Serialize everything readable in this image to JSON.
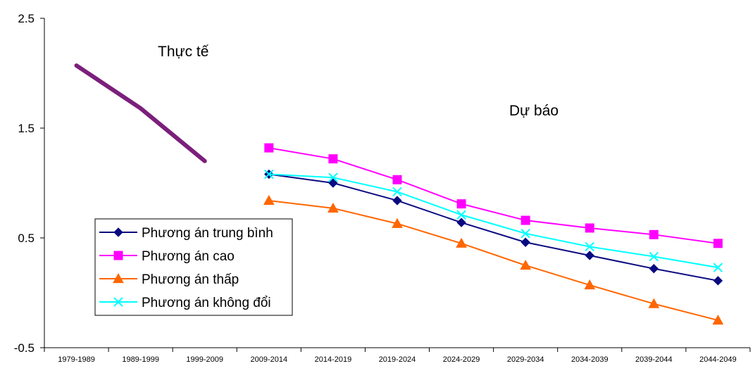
{
  "chart_data": {
    "type": "line",
    "categories": [
      "1979-1989",
      "1989-1999",
      "1999-2009",
      "2009-2014",
      "2014-2019",
      "2019-2024",
      "2024-2029",
      "2029-2034",
      "2034-2039",
      "2039-2044",
      "2044-2049"
    ],
    "ylim": [
      -0.5,
      2.5
    ],
    "yticks": [
      "2.5",
      "1.5",
      "0.5",
      "-0.5"
    ],
    "ytick_values": [
      2.5,
      1.5,
      0.5,
      -0.5
    ],
    "grid": false,
    "legend_position": "bottom-left",
    "annotations": [
      {
        "text": "Thực tế"
      },
      {
        "text": "Dự báo"
      }
    ],
    "series": [
      {
        "name": "",
        "key": "actual",
        "color": "#7b1f7b",
        "marker": "none",
        "values": [
          2.07,
          1.68,
          1.2,
          null,
          null,
          null,
          null,
          null,
          null,
          null,
          null
        ]
      },
      {
        "name": "Phương án trung bình",
        "key": "medium",
        "color": "#0a0a80",
        "marker": "diamond",
        "values": [
          null,
          null,
          null,
          1.08,
          1.0,
          0.84,
          0.64,
          0.46,
          0.34,
          0.22,
          0.11
        ]
      },
      {
        "name": "Phương án cao",
        "key": "high",
        "color": "#ff00ff",
        "marker": "square",
        "values": [
          null,
          null,
          null,
          1.32,
          1.22,
          1.03,
          0.81,
          0.66,
          0.59,
          0.53,
          0.45
        ]
      },
      {
        "name": "Phương án thấp",
        "key": "low",
        "color": "#ff6600",
        "marker": "triangle",
        "values": [
          null,
          null,
          null,
          0.84,
          0.77,
          0.63,
          0.45,
          0.25,
          0.07,
          -0.1,
          -0.25
        ]
      },
      {
        "name": "Phương án không đổi",
        "key": "constant",
        "color": "#00ffff",
        "marker": "x",
        "values": [
          null,
          null,
          null,
          1.08,
          1.05,
          0.92,
          0.71,
          0.54,
          0.42,
          0.33,
          0.23
        ]
      }
    ]
  }
}
